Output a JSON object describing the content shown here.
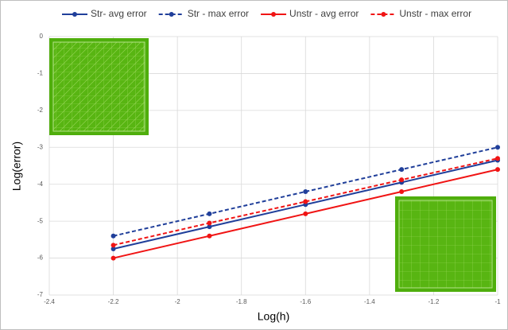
{
  "chart_data": {
    "type": "line",
    "x_label": "Log(h)",
    "y_label": "Log(error)",
    "x": [
      -2.2,
      -1.9,
      -1.6,
      -1.3,
      -1.0
    ],
    "series": [
      {
        "name": "Str- avg error",
        "color": "#203f9a",
        "line_style": "solid",
        "values": [
          -5.75,
          -5.15,
          -4.55,
          -3.95,
          -3.35
        ]
      },
      {
        "name": "Str - max error",
        "color": "#203f9a",
        "line_style": "dashed",
        "values": [
          -5.4,
          -4.8,
          -4.2,
          -3.6,
          -3.0
        ]
      },
      {
        "name": "Unstr - avg error",
        "color": "#f01414",
        "line_style": "solid",
        "values": [
          -6.0,
          -5.4,
          -4.8,
          -4.2,
          -3.6
        ]
      },
      {
        "name": "Unstr - max error",
        "color": "#f01414",
        "line_style": "dashed",
        "values": [
          -5.65,
          -5.05,
          -4.47,
          -3.88,
          -3.3
        ]
      }
    ],
    "xlim": [
      -2.4,
      -1
    ],
    "xticks": [
      -2.4,
      -2.2,
      -2,
      -1.8,
      -1.6,
      -1.4,
      -1.2,
      -1
    ],
    "ylim": [
      -7,
      0
    ],
    "yticks": [
      0,
      -1,
      -2,
      -3,
      -4,
      -5,
      -6,
      -7
    ],
    "grid": true,
    "legend": "top"
  }
}
